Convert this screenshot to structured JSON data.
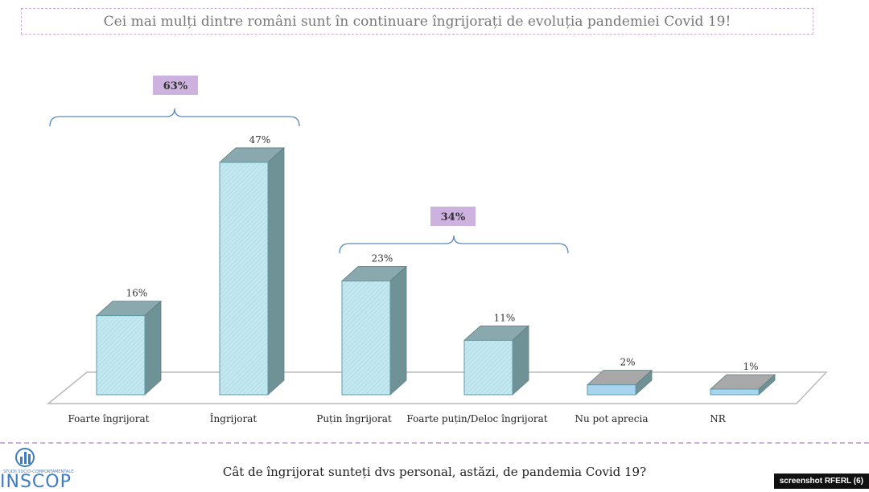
{
  "title": "Cei mai mulți dintre români sunt în continuare îngrijorați de evoluția pandemiei Covid 19!",
  "question": "Cât de îngrijorat sunteți dvs personal, astăzi, de pandemia Covid 19?",
  "logo_text": "INSCOP",
  "logo_tagline": "STUDII SOCIO-COMPORTAMENTALE",
  "credit": "screenshot RFERL (6)",
  "colors": {
    "bar_face": "#bde6ef",
    "bar_side": "#6f9297",
    "bar_top": "#8aa9ae",
    "small_face": "#a9d4ef",
    "small_top": "#a8a8a8",
    "bracket": "#5a87bd",
    "badge": "#cdb2df"
  },
  "chart_data": {
    "type": "bar",
    "categories": [
      "Foarte îngrijorat",
      "Îngrijorat",
      "Puțin îngrijorat",
      "Foarte puțin/Deloc îngrijorat",
      "Nu pot aprecia",
      "NR"
    ],
    "values": [
      16,
      47,
      23,
      11,
      2,
      1
    ],
    "data_labels": [
      "16%",
      "47%",
      "23%",
      "11%",
      "2%",
      "1%"
    ],
    "ylim": [
      0,
      50
    ],
    "grid": false,
    "groups": [
      {
        "label": "63%",
        "categories": [
          "Foarte îngrijorat",
          "Îngrijorat"
        ]
      },
      {
        "label": "34%",
        "categories": [
          "Puțin îngrijorat",
          "Foarte puțin/Deloc îngrijorat"
        ]
      }
    ]
  }
}
